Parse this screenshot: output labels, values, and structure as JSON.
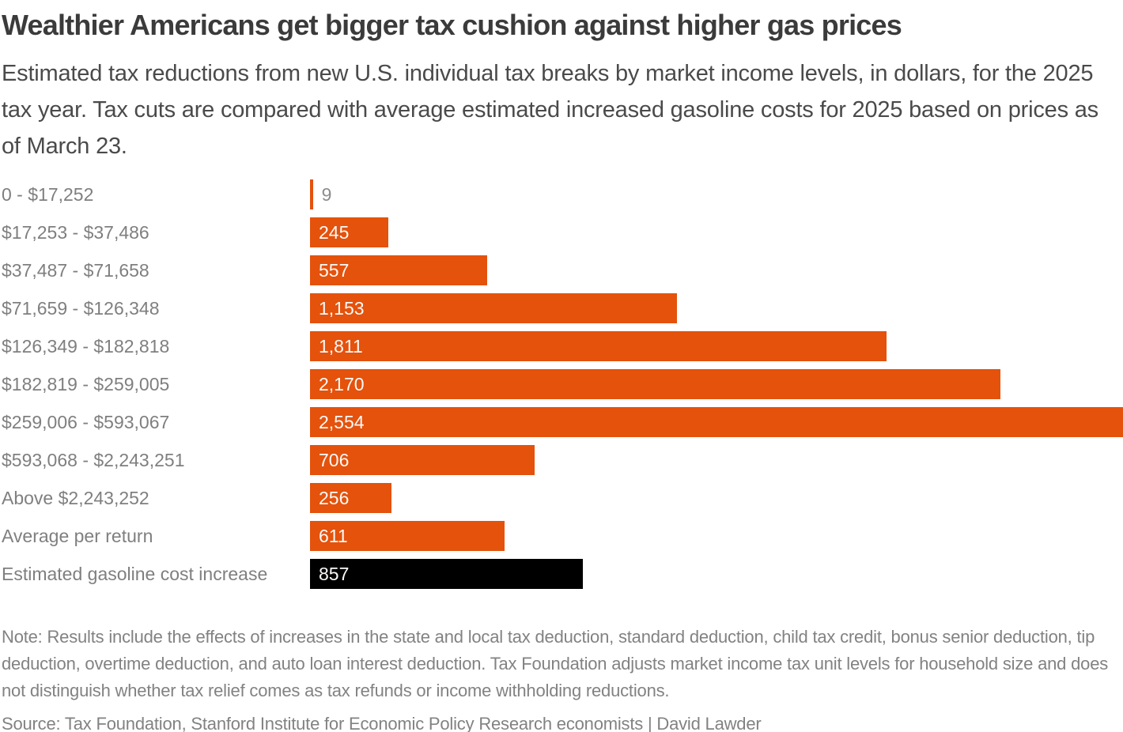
{
  "header": {
    "title": "Wealthier Americans get bigger tax cushion against higher gas prices",
    "subtitle": "Estimated tax reductions from new U.S. individual tax breaks by market income levels, in dollars, for the 2025 tax year. Tax cuts are compared with average estimated increased gasoline costs for 2025 based on prices as of March 23."
  },
  "footer": {
    "note": "Note: Results include the effects of increases in the state and local tax deduction, standard deduction, child tax credit, bonus senior deduction, tip deduction, overtime deduction, and auto loan interest deduction. Tax Foundation adjusts market income tax unit levels for household size and does not distinguish whether tax relief comes as tax refunds or income withholding reductions.",
    "source": "Source: Tax Foundation, Stanford Institute for Economic Policy Research economists | David Lawder"
  },
  "colors": {
    "bar_orange": "#e4520c",
    "bar_black": "#000000",
    "title_text": "#3b3b3b",
    "subtitle_text": "#4a4a4a",
    "category_text": "#7f7f7f",
    "note_text": "#828282",
    "value_text_inside": "#faf9f7",
    "value_text_outside": "#8d8d8d",
    "background": "#ffffff"
  },
  "chart_data": {
    "type": "bar",
    "orientation": "horizontal",
    "title": "Wealthier Americans get bigger tax cushion against higher gas prices",
    "xlabel": "",
    "ylabel": "",
    "xlim": [
      0,
      2554
    ],
    "grid": false,
    "legend": false,
    "categories": [
      "0 - $17,252",
      "$17,253 - $37,486",
      "$37,487 - $71,658",
      "$71,659 - $126,348",
      "$126,349 - $182,818",
      "$182,819 - $259,005",
      "$259,006 - $593,067",
      "$593,068 - $2,243,251",
      "Above $2,243,252",
      "Average per return",
      "Estimated gasoline cost increase"
    ],
    "values": [
      9,
      245,
      557,
      1153,
      1811,
      2170,
      2554,
      706,
      256,
      611,
      857
    ],
    "value_labels": [
      "9",
      "245",
      "557",
      "1,153",
      "1,811",
      "2,170",
      "2,554",
      "706",
      "256",
      "611",
      "857"
    ],
    "bar_colors": [
      "#e4520c",
      "#e4520c",
      "#e4520c",
      "#e4520c",
      "#e4520c",
      "#e4520c",
      "#e4520c",
      "#e4520c",
      "#e4520c",
      "#e4520c",
      "#000000"
    ],
    "label_inside": [
      false,
      true,
      true,
      true,
      true,
      true,
      true,
      true,
      true,
      true,
      true
    ]
  }
}
